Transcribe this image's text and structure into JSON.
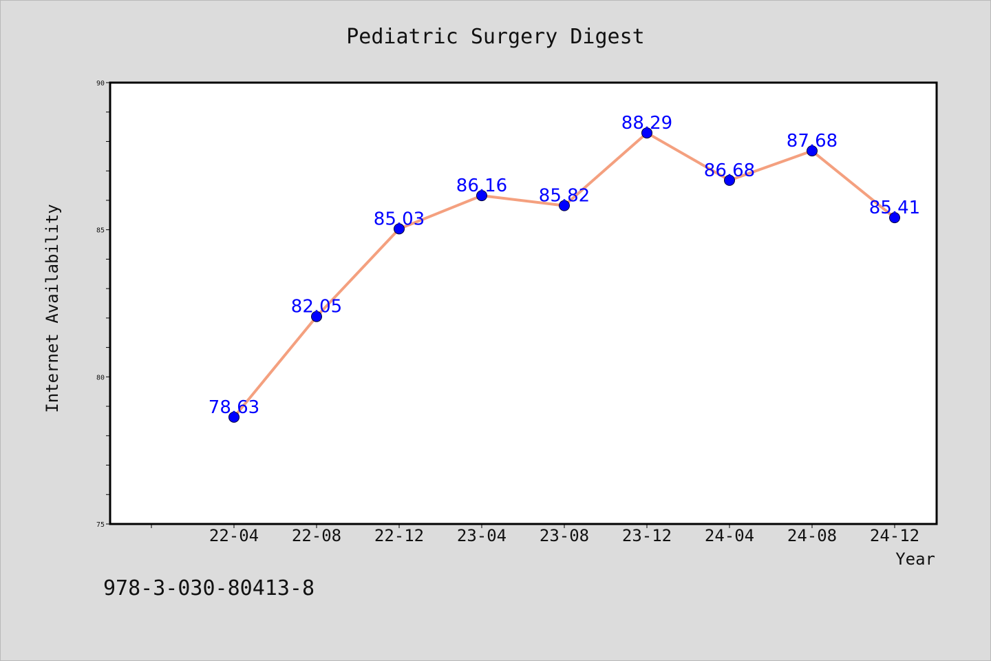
{
  "chart_data": {
    "type": "line",
    "title": "Pediatric Surgery Digest",
    "xlabel": "Year",
    "ylabel": "Internet Availability",
    "categories": [
      "22-04",
      "22-08",
      "22-12",
      "23-04",
      "23-08",
      "23-12",
      "24-04",
      "24-08",
      "24-12"
    ],
    "values": [
      78.63,
      82.05,
      85.03,
      86.16,
      85.82,
      88.29,
      86.68,
      87.68,
      85.41
    ],
    "data_labels": [
      "78.63",
      "82.05",
      "85.03",
      "86.16",
      "85.82",
      "88.29",
      "86.68",
      "87.68",
      "85.41"
    ],
    "ylim": [
      75,
      90
    ],
    "yticks": [
      "75",
      "80",
      "85",
      "90"
    ],
    "grid": false,
    "legend": "none",
    "colors": {
      "line": "#f4a07f",
      "marker": "#0000ff",
      "label": "#0000ff",
      "plot_bg": "#ffffff",
      "page_bg": "#dcdcdc"
    }
  },
  "annotation": {
    "isbn": "978-3-030-80413-8"
  }
}
